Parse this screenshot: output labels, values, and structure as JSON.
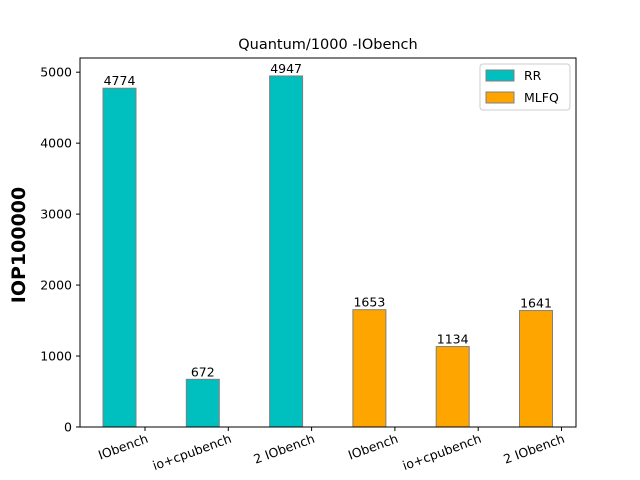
{
  "chart_data": {
    "type": "bar",
    "title": "Quantum/1000 -IObench",
    "xlabel": "",
    "ylabel": "IOP100000",
    "ylim": [
      0,
      5200
    ],
    "yticks": [
      0,
      1000,
      2000,
      3000,
      4000,
      5000
    ],
    "categories": [
      "IObench",
      "io+cpubench",
      "2 IObench",
      "IObench",
      "io+cpubench",
      "2 IObench"
    ],
    "series": [
      {
        "name": "RR",
        "color": "#00BFBF",
        "values": [
          4774,
          672,
          4947,
          null,
          null,
          null
        ]
      },
      {
        "name": "MLFQ",
        "color": "#FFA500",
        "values": [
          null,
          null,
          null,
          1653,
          1134,
          1641
        ]
      }
    ],
    "legend": "top-right",
    "grid": false,
    "bar_edge_color": "#808080"
  }
}
